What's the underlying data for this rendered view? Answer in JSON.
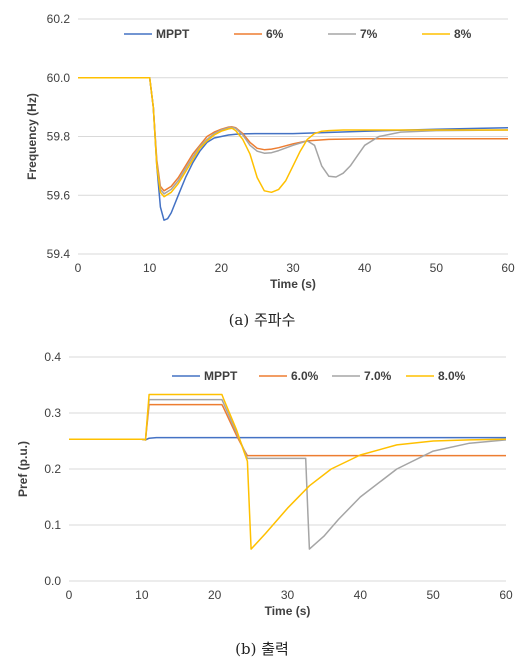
{
  "chart_data": [
    {
      "type": "line",
      "caption": "(a) 주파수",
      "xlabel": "Time (s)",
      "ylabel": "Frequency (Hz)",
      "xlim": [
        0,
        60
      ],
      "ylim": [
        59.4,
        60.2
      ],
      "xticks": [
        0,
        10,
        20,
        30,
        40,
        50,
        60
      ],
      "yticks": [
        "59.4",
        "59.6",
        "59.8",
        "60.0",
        "60.2"
      ],
      "legend_position": "top",
      "grid": "horizontal",
      "series": [
        {
          "name": "MPPT",
          "color": "#4472C4",
          "x": [
            0,
            10,
            10.5,
            11,
            11.5,
            12,
            12.5,
            13,
            14,
            15,
            16,
            17,
            18,
            19,
            20,
            21,
            22,
            23,
            25,
            30,
            40,
            50,
            60
          ],
          "y": [
            60.0,
            60.0,
            59.9,
            59.7,
            59.56,
            59.515,
            59.52,
            59.54,
            59.6,
            59.66,
            59.71,
            59.75,
            59.78,
            59.795,
            59.8,
            59.805,
            59.808,
            59.809,
            59.81,
            59.81,
            59.818,
            59.825,
            59.83
          ]
        },
        {
          "name": "6%",
          "color": "#ED7D31",
          "x": [
            0,
            10,
            10.5,
            11,
            11.5,
            12,
            13,
            14,
            15,
            16,
            17,
            18,
            19,
            20,
            21,
            21.5,
            22,
            23,
            24,
            25,
            26,
            27,
            28,
            30,
            32,
            35,
            40,
            50,
            60
          ],
          "y": [
            60.0,
            60.0,
            59.9,
            59.72,
            59.63,
            59.615,
            59.63,
            59.66,
            59.7,
            59.74,
            59.77,
            59.8,
            59.815,
            59.825,
            59.832,
            59.833,
            59.83,
            59.81,
            59.78,
            59.76,
            59.755,
            59.757,
            59.762,
            59.775,
            59.785,
            59.79,
            59.792,
            59.792,
            59.792
          ]
        },
        {
          "name": "7%",
          "color": "#A5A5A5",
          "x": [
            0,
            10,
            10.5,
            11,
            11.5,
            12,
            13,
            14,
            15,
            16,
            17,
            18,
            19,
            20,
            21,
            21.5,
            22,
            23,
            24,
            25,
            26,
            27,
            28,
            30,
            32,
            33,
            34,
            35,
            36,
            37,
            38,
            39,
            40,
            42,
            45,
            50,
            60
          ],
          "y": [
            60.0,
            60.0,
            59.9,
            59.71,
            59.62,
            59.605,
            59.62,
            59.65,
            59.69,
            59.73,
            59.765,
            59.79,
            59.81,
            59.822,
            59.83,
            59.831,
            59.828,
            59.805,
            59.77,
            59.75,
            59.743,
            59.745,
            59.752,
            59.77,
            59.785,
            59.77,
            59.7,
            59.665,
            59.662,
            59.675,
            59.7,
            59.735,
            59.77,
            59.8,
            59.815,
            59.82,
            59.822
          ]
        },
        {
          "name": "8%",
          "color": "#FFC000",
          "x": [
            0,
            10,
            10.5,
            11,
            11.5,
            12,
            13,
            14,
            15,
            16,
            17,
            18,
            19,
            20,
            21,
            21.5,
            22,
            23,
            24,
            25,
            26,
            27,
            28,
            29,
            30,
            31,
            32,
            33,
            34,
            35,
            37,
            40,
            45,
            50,
            60
          ],
          "y": [
            60.0,
            60.0,
            59.9,
            59.7,
            59.61,
            59.595,
            59.61,
            59.64,
            59.68,
            59.72,
            59.76,
            59.785,
            59.805,
            59.818,
            59.826,
            59.828,
            59.82,
            59.79,
            59.74,
            59.66,
            59.615,
            59.61,
            59.62,
            59.65,
            59.7,
            59.75,
            59.79,
            59.81,
            59.818,
            59.82,
            59.822,
            59.822,
            59.822,
            59.822,
            59.822
          ]
        }
      ]
    },
    {
      "type": "line",
      "caption": "(b) 출력",
      "xlabel": "Time (s)",
      "ylabel": "Pref (p.u.)",
      "xlim": [
        0,
        60
      ],
      "ylim": [
        0,
        0.4
      ],
      "xticks": [
        0,
        10,
        20,
        30,
        40,
        50,
        60
      ],
      "yticks": [
        "0.0",
        "0.1",
        "0.2",
        "0.3",
        "0.4"
      ],
      "legend_position": "top",
      "grid": "horizontal",
      "series": [
        {
          "name": "MPPT",
          "color": "#4472C4",
          "x": [
            0,
            10,
            10.5,
            11,
            12,
            20,
            30,
            60
          ],
          "y": [
            0.253,
            0.253,
            0.252,
            0.255,
            0.256,
            0.256,
            0.256,
            0.256
          ]
        },
        {
          "name": "6.0%",
          "color": "#ED7D31",
          "x": [
            0,
            10,
            10.5,
            11,
            21,
            21.2,
            23,
            24,
            24.5,
            30,
            60
          ],
          "y": [
            0.253,
            0.253,
            0.252,
            0.315,
            0.315,
            0.31,
            0.26,
            0.235,
            0.224,
            0.224,
            0.224
          ]
        },
        {
          "name": "7.0%",
          "color": "#A5A5A5",
          "x": [
            0,
            10,
            10.5,
            11,
            21,
            21.2,
            23,
            24,
            24.5,
            32.5,
            32.8,
            33,
            35,
            37,
            40,
            45,
            50,
            55,
            60
          ],
          "y": [
            0.253,
            0.253,
            0.252,
            0.324,
            0.324,
            0.318,
            0.265,
            0.235,
            0.219,
            0.219,
            0.12,
            0.057,
            0.08,
            0.11,
            0.15,
            0.2,
            0.232,
            0.246,
            0.252
          ]
        },
        {
          "name": "8.0%",
          "color": "#FFC000",
          "x": [
            0,
            10,
            10.5,
            11,
            21,
            21.2,
            23,
            24,
            24.5,
            24.8,
            25,
            27,
            30,
            33,
            36,
            40,
            45,
            50,
            55,
            60
          ],
          "y": [
            0.253,
            0.253,
            0.252,
            0.333,
            0.333,
            0.326,
            0.27,
            0.232,
            0.214,
            0.12,
            0.057,
            0.085,
            0.13,
            0.17,
            0.2,
            0.225,
            0.243,
            0.25,
            0.252,
            0.253
          ]
        }
      ]
    }
  ]
}
